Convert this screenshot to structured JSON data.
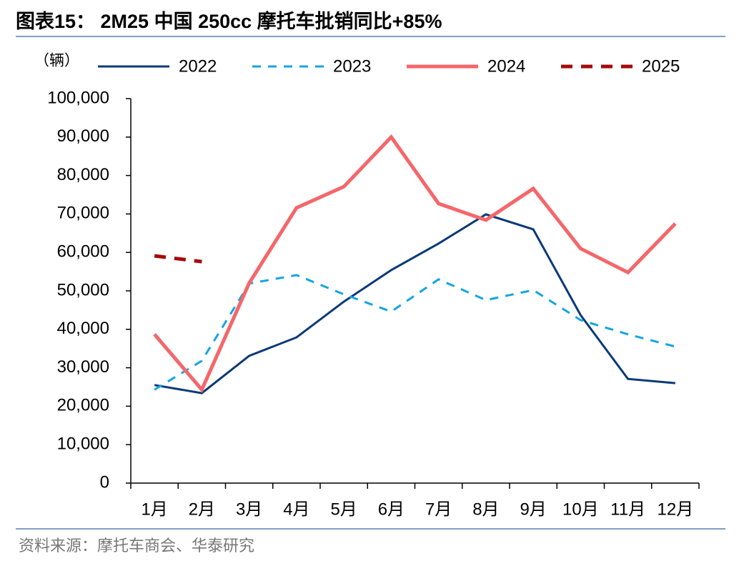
{
  "chart_data": {
    "type": "line",
    "title": "图表15：  2M25 中国 250cc 摩托车批销同比+85%",
    "y_label": "（辆）",
    "source": "资料来源：摩托车商会、华泰研究",
    "categories": [
      "1月",
      "2月",
      "3月",
      "4月",
      "5月",
      "6月",
      "7月",
      "8月",
      "9月",
      "10月",
      "11月",
      "12月"
    ],
    "series": [
      {
        "name": "2022",
        "color": "#0b3a78",
        "dash": "solid",
        "width": 3,
        "values": [
          25500,
          23400,
          33100,
          37900,
          47200,
          55400,
          62300,
          69900,
          66000,
          43700,
          27100,
          26000
        ]
      },
      {
        "name": "2023",
        "color": "#14a5e3",
        "dash": "dashed",
        "width": 3,
        "values": [
          24300,
          31800,
          51900,
          54100,
          49100,
          44600,
          53000,
          47600,
          50200,
          42400,
          38700,
          35500
        ]
      },
      {
        "name": "2024",
        "color": "#f4676a",
        "dash": "solid",
        "width": 5,
        "values": [
          38700,
          24300,
          52000,
          71600,
          77100,
          90000,
          72700,
          68400,
          76600,
          61000,
          54800,
          67500
        ]
      },
      {
        "name": "2025",
        "color": "#a50a0a",
        "dash": "dashed",
        "width": 5,
        "values": [
          59100,
          57600,
          null,
          null,
          null,
          null,
          null,
          null,
          null,
          null,
          null,
          null
        ]
      }
    ],
    "ylim": [
      0,
      100000
    ],
    "yticks": [
      0,
      {
        "value": 10000,
        "label": "10,000"
      },
      {
        "value": 20000,
        "label": "20,000"
      },
      {
        "value": 30000,
        "label": "30,000"
      },
      {
        "value": 40000,
        "label": "40,000"
      },
      {
        "value": 50000,
        "label": "50,000"
      },
      {
        "value": 60000,
        "label": "60,000"
      },
      {
        "value": 70000,
        "label": "70,000"
      },
      {
        "value": 80000,
        "label": "80,000"
      },
      {
        "value": 90000,
        "label": "90,000"
      },
      {
        "value": 100000,
        "label": "100,000"
      }
    ],
    "grid": false
  }
}
